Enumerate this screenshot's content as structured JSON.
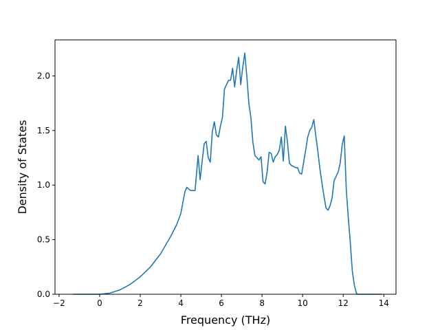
{
  "chart_data": {
    "type": "line",
    "title": "",
    "xlabel": "Frequency (THz)",
    "ylabel": "Density of States",
    "xlim": [
      -2.2,
      14.6
    ],
    "ylim": [
      0.0,
      2.33
    ],
    "xticks": [
      -2,
      0,
      2,
      4,
      6,
      8,
      10,
      12,
      14
    ],
    "xtick_labels": [
      "−2",
      "0",
      "2",
      "4",
      "6",
      "8",
      "10",
      "12",
      "14"
    ],
    "yticks": [
      0.0,
      0.5,
      1.0,
      1.5,
      2.0
    ],
    "ytick_labels": [
      "0.0",
      "0.5",
      "1.0",
      "1.5",
      "2.0"
    ],
    "grid": false,
    "series": [
      {
        "color": "#1f77b4",
        "x": [
          -1.3,
          -0.5,
          0.0,
          0.5,
          1.0,
          1.5,
          2.0,
          2.5,
          3.0,
          3.5,
          3.8,
          4.0,
          4.2,
          4.3,
          4.4,
          4.5,
          4.6,
          4.7,
          4.85,
          4.95,
          5.05,
          5.15,
          5.25,
          5.35,
          5.45,
          5.55,
          5.65,
          5.75,
          5.85,
          5.95,
          6.05,
          6.15,
          6.25,
          6.35,
          6.45,
          6.55,
          6.65,
          6.75,
          6.85,
          6.95,
          7.05,
          7.15,
          7.25,
          7.35,
          7.45,
          7.55,
          7.65,
          7.75,
          7.85,
          7.95,
          8.05,
          8.15,
          8.25,
          8.35,
          8.45,
          8.55,
          8.65,
          8.75,
          8.85,
          8.95,
          9.05,
          9.15,
          9.25,
          9.35,
          9.45,
          9.55,
          9.65,
          9.75,
          9.85,
          9.95,
          10.05,
          10.15,
          10.25,
          10.35,
          10.45,
          10.55,
          10.65,
          10.75,
          10.85,
          10.95,
          11.05,
          11.15,
          11.25,
          11.35,
          11.45,
          11.55,
          11.65,
          11.75,
          11.85,
          11.95,
          12.05,
          12.15,
          12.25,
          12.35,
          12.45,
          12.55,
          12.65,
          12.7,
          13.0,
          13.5,
          13.9
        ],
        "y": [
          0.0,
          0.0,
          0.0,
          0.01,
          0.04,
          0.09,
          0.16,
          0.25,
          0.37,
          0.53,
          0.64,
          0.74,
          0.94,
          0.98,
          0.96,
          0.95,
          0.95,
          0.95,
          1.27,
          1.05,
          1.22,
          1.38,
          1.4,
          1.25,
          1.21,
          1.49,
          1.58,
          1.46,
          1.44,
          1.54,
          1.62,
          1.88,
          1.92,
          1.96,
          1.96,
          2.07,
          1.9,
          2.05,
          2.17,
          1.92,
          2.08,
          2.21,
          2.0,
          1.75,
          1.62,
          1.39,
          1.27,
          1.25,
          1.23,
          1.26,
          1.03,
          1.01,
          1.12,
          1.3,
          1.29,
          1.21,
          1.26,
          1.28,
          1.32,
          1.44,
          1.22,
          1.54,
          1.4,
          1.2,
          1.18,
          1.17,
          1.16,
          1.16,
          1.11,
          1.1,
          1.21,
          1.32,
          1.44,
          1.5,
          1.53,
          1.6,
          1.45,
          1.31,
          1.15,
          1.02,
          0.9,
          0.79,
          0.77,
          0.81,
          0.88,
          1.04,
          1.08,
          1.12,
          1.2,
          1.37,
          1.45,
          0.96,
          0.7,
          0.47,
          0.21,
          0.08,
          0.01,
          0.0,
          0.0,
          0.0,
          0.0
        ]
      }
    ]
  }
}
